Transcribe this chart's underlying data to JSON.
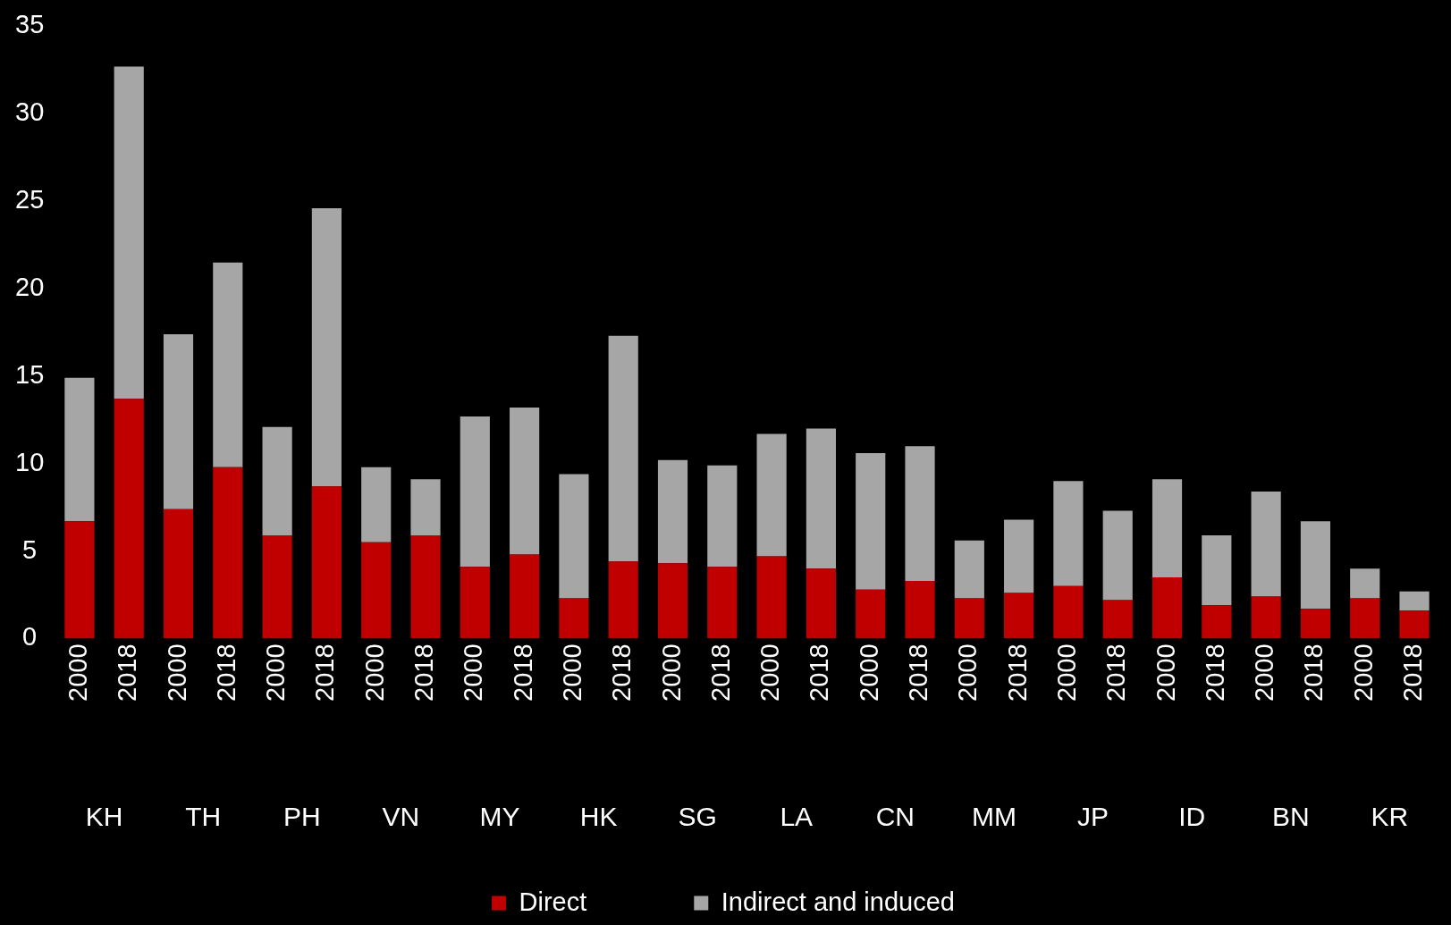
{
  "chart_data": {
    "type": "bar",
    "stacked": true,
    "categories": [
      "2000",
      "2018",
      "2000",
      "2018",
      "2000",
      "2018",
      "2000",
      "2018",
      "2000",
      "2018",
      "2000",
      "2018",
      "2000",
      "2018",
      "2000",
      "2018",
      "2000",
      "2018",
      "2000",
      "2018",
      "2000",
      "2018",
      "2000",
      "2018",
      "2000",
      "2018",
      "2000",
      "2018"
    ],
    "series": [
      {
        "name": "Direct",
        "color": "#c00000",
        "values": [
          6.7,
          13.7,
          7.4,
          9.8,
          5.9,
          8.7,
          5.5,
          5.9,
          4.1,
          4.8,
          2.3,
          4.4,
          4.3,
          4.1,
          4.7,
          4.0,
          2.8,
          3.3,
          2.3,
          2.6,
          3.0,
          2.2,
          3.5,
          1.9,
          2.4,
          1.7,
          2.3,
          1.6
        ]
      },
      {
        "name": "Indirect and induced",
        "color": "#a6a6a6",
        "values": [
          8.2,
          19.0,
          10.0,
          11.7,
          6.2,
          15.9,
          4.3,
          3.2,
          8.6,
          8.4,
          7.1,
          12.9,
          5.9,
          5.8,
          7.0,
          8.0,
          7.8,
          7.7,
          3.3,
          4.2,
          6.0,
          5.1,
          5.6,
          4.0,
          6.0,
          5.0,
          1.7,
          1.1
        ]
      }
    ],
    "annotations": [
      "KH",
      "TH",
      "PH",
      "VN",
      "MY",
      "HK",
      "SG",
      "LA",
      "CN",
      "MM",
      "JP",
      "ID",
      "BN",
      "KR"
    ],
    "ylim": [
      0,
      35
    ],
    "yticks": [
      0,
      5,
      10,
      15,
      20,
      25,
      30,
      35
    ],
    "grid": false,
    "legend": "bottom"
  }
}
